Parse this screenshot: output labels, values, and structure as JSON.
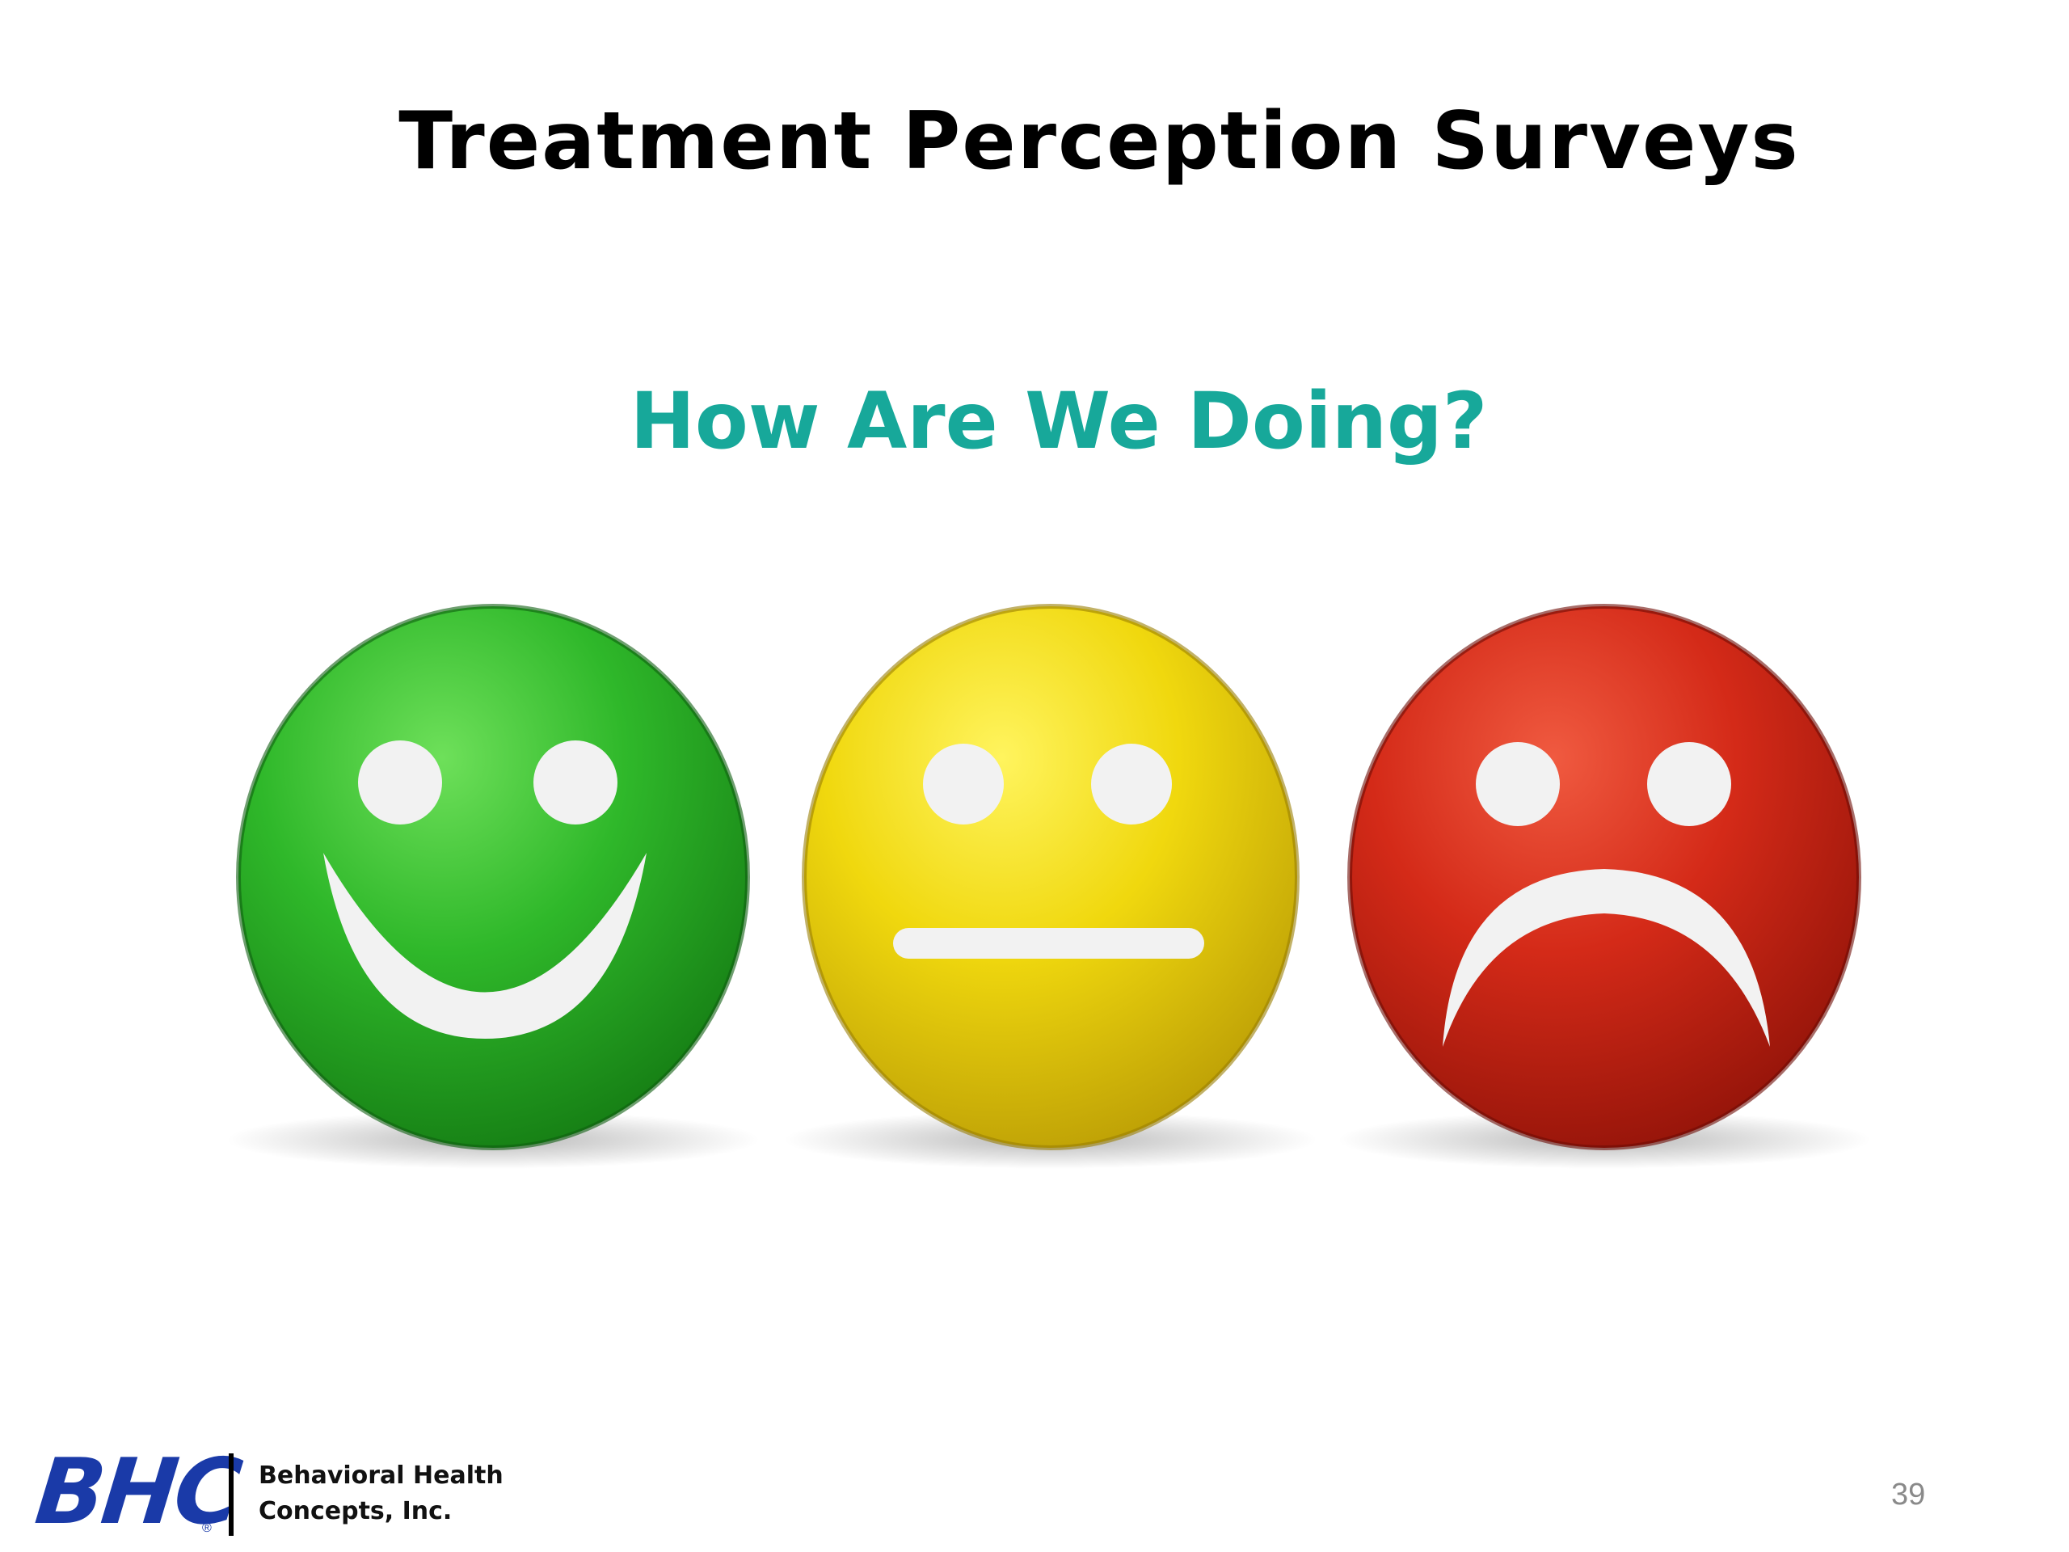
{
  "slide": {
    "title": "Treatment Perception Surveys",
    "image": {
      "heading": "How Are We Doing?",
      "heading_color": "#17a89a",
      "faces": [
        {
          "name": "happy-face-icon",
          "color": "#2fb82a"
        },
        {
          "name": "neutral-face-icon",
          "color": "#f0d80e"
        },
        {
          "name": "sad-face-icon",
          "color": "#d42a18"
        }
      ]
    },
    "footer": {
      "logo_mark": "BHC",
      "logo_registered": "®",
      "company_line1": "Behavioral Health",
      "company_line2": "Concepts, Inc.",
      "page_number": "39"
    }
  }
}
